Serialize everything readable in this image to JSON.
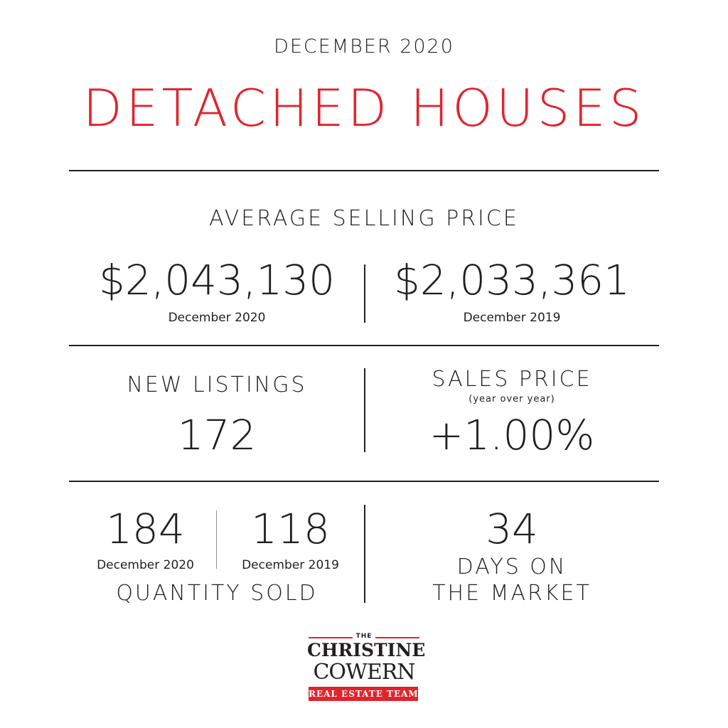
{
  "header": {
    "period": "DECEMBER 2020",
    "title": "DETACHED HOUSES"
  },
  "average_selling_price": {
    "label": "AVERAGE SELLING PRICE",
    "current_value": "$2,043,130",
    "current_period": "December 2020",
    "previous_value": "$2,033,361",
    "previous_period": "December 2019"
  },
  "new_listings": {
    "label": "NEW LISTINGS",
    "value": "172"
  },
  "sales_price": {
    "label": "SALES PRICE",
    "sublabel": "(year over year)",
    "value": "+1.00%"
  },
  "quantity_sold": {
    "current_value": "184",
    "current_period": "December 2020",
    "previous_value": "118",
    "previous_period": "December 2019",
    "label": "QUANTITY SOLD"
  },
  "days_on_market": {
    "value": "34",
    "label_line1": "DAYS ON",
    "label_line2": "THE MARKET"
  },
  "logo": {
    "the": "THE",
    "name_line1": "CHRISTINE",
    "name_line2": "COWERN",
    "tagline": "REAL ESTATE TEAM"
  },
  "colors": {
    "accent": "#e0242e",
    "text": "#231f20",
    "background": "#ffffff"
  }
}
